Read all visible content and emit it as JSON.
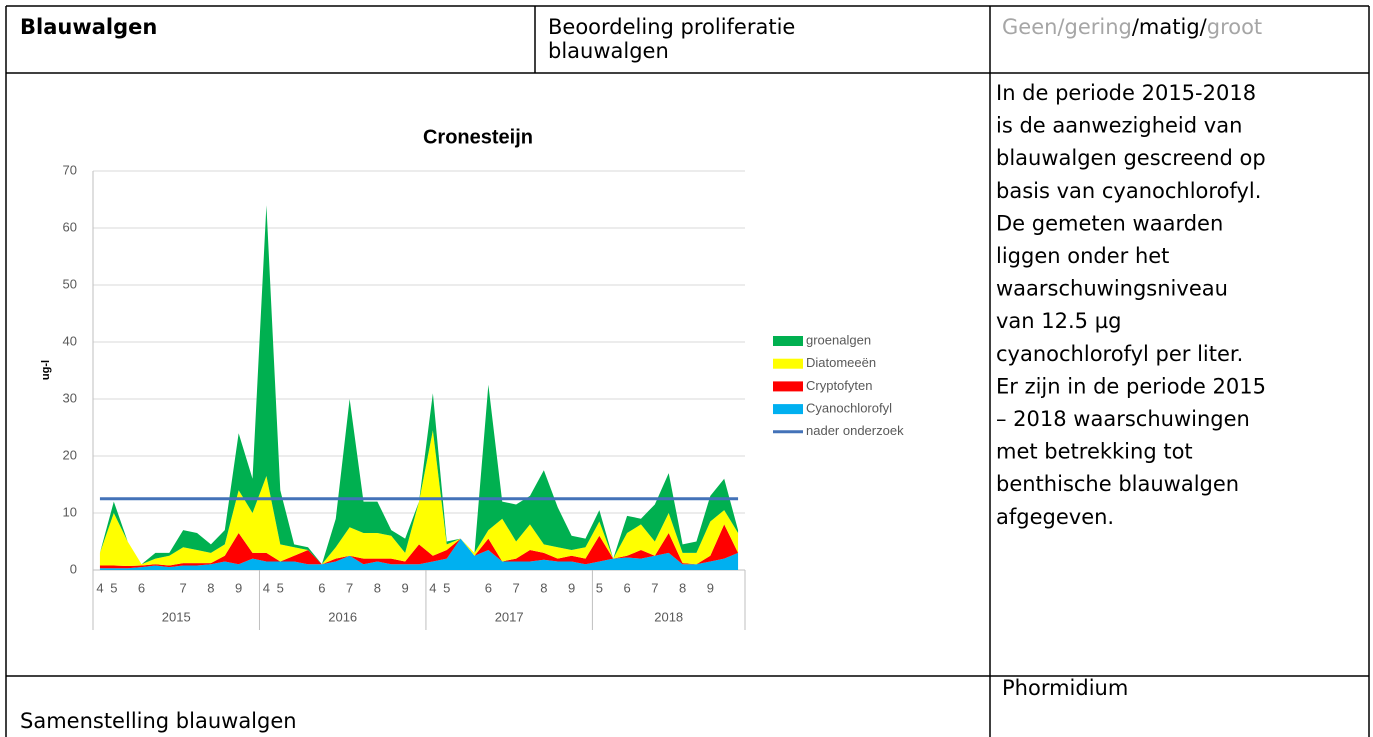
{
  "header": {
    "title": "Blauwalgen",
    "assessment": [
      "Beoordeling proliferatie",
      "blauwalgen"
    ],
    "rating": [
      "Geen/gering",
      "/matig/",
      "groot"
    ]
  },
  "description": [
    "In de periode 2015-2018",
    "is de aanwezigheid van",
    "blauwalgen gescreend op",
    "basis van cyanochlorofyl.",
    "De gemeten waarden",
    "liggen onder het",
    "waarschuwingsniveau",
    "van 12.5 µg",
    "cyanochlorofyl per liter.",
    "Er zijn in de periode 2015",
    "– 2018 waarschuwingen",
    "met betrekking tot",
    "benthische blauwalgen",
    "afgegeven."
  ],
  "footer": {
    "left": "Samenstelling blauwalgen",
    "right": "Phormidium"
  },
  "chart_data": {
    "type": "area",
    "title": "Cronesteijn",
    "y_label": "ug-l",
    "categories": [
      "4",
      "5",
      null,
      "6",
      null,
      null,
      "7",
      null,
      "8",
      null,
      "9",
      null,
      "4",
      "5",
      null,
      null,
      "6",
      null,
      "7",
      null,
      "8",
      null,
      "9",
      null,
      "4",
      "5",
      null,
      null,
      "6",
      null,
      "7",
      null,
      "8",
      null,
      "9",
      null,
      "5",
      null,
      "6",
      null,
      "7",
      null,
      "8",
      null,
      "9",
      null,
      null
    ],
    "groups": [
      {
        "name": "2015",
        "count": 12
      },
      {
        "name": "2016",
        "count": 12
      },
      {
        "name": "2017",
        "count": 12
      },
      {
        "name": "2018",
        "count": 11
      }
    ],
    "series": [
      {
        "name": "groenalgen",
        "color": "#00b050",
        "values": [
          0,
          2,
          0,
          0,
          1,
          0.5,
          3,
          3,
          1.5,
          2.5,
          10,
          6,
          47.5,
          9.5,
          0.5,
          0.5,
          0,
          5,
          22.5,
          5.5,
          5.5,
          1,
          2.5,
          0,
          6.5,
          0.5,
          0,
          0,
          25.5,
          3,
          6.5,
          5,
          13,
          7,
          2.5,
          1.5,
          2,
          0,
          3,
          1,
          6.5,
          7,
          1.5,
          2,
          4.5,
          5.5,
          0.5
        ]
      },
      {
        "name": "Diatomeeën",
        "color": "#ffff00",
        "values": [
          2.2,
          9.2,
          4.3,
          0.2,
          1,
          1.7,
          2.8,
          2.3,
          1.8,
          2,
          7.5,
          7,
          13.5,
          3,
          1.5,
          0,
          0,
          2,
          5,
          4.5,
          4.5,
          4,
          1.5,
          7.5,
          22,
          1,
          0,
          0.5,
          1.5,
          7.5,
          3,
          4.5,
          1.5,
          2,
          1,
          2,
          2.5,
          0,
          4,
          4.5,
          2.5,
          3.5,
          1.8,
          2,
          6,
          2.5,
          3.5
        ]
      },
      {
        "name": "Cryptofyten",
        "color": "#ff0000",
        "values": [
          0.5,
          0.5,
          0.4,
          0.3,
          0.2,
          0.3,
          0.4,
          0.4,
          0.2,
          1,
          5.5,
          1,
          1.5,
          0,
          1,
          2.5,
          0,
          0.5,
          0,
          1,
          0.5,
          1,
          0.5,
          3.5,
          1,
          1.5,
          0,
          0,
          2,
          0,
          0.5,
          2,
          1.2,
          0.5,
          1,
          1,
          4.5,
          0,
          0.3,
          1.5,
          0,
          3.5,
          0.2,
          0,
          1,
          6,
          0
        ]
      },
      {
        "name": "Cyanochlorofyl",
        "color": "#00b0f0",
        "values": [
          0.3,
          0.3,
          0.3,
          0.5,
          0.8,
          0.5,
          0.8,
          0.8,
          1,
          1.5,
          1,
          2,
          1.5,
          1.5,
          1.5,
          1,
          1,
          1.5,
          2.5,
          1,
          1.5,
          1,
          1,
          1,
          1.5,
          2,
          5.5,
          2.5,
          3.5,
          1.5,
          1.5,
          1.5,
          1.8,
          1.5,
          1.5,
          1,
          1.5,
          2,
          2.2,
          2,
          2.5,
          3,
          1,
          1,
          1.5,
          2,
          3
        ]
      },
      {
        "name": "nader onderzoek",
        "color": "#4372b8",
        "type": "line",
        "values": [
          12.5,
          12.5,
          12.5,
          12.5,
          12.5,
          12.5,
          12.5,
          12.5,
          12.5,
          12.5,
          12.5,
          12.5,
          12.5,
          12.5,
          12.5,
          12.5,
          12.5,
          12.5,
          12.5,
          12.5,
          12.5,
          12.5,
          12.5,
          12.5,
          12.5,
          12.5,
          12.5,
          12.5,
          12.5,
          12.5,
          12.5,
          12.5,
          12.5,
          12.5,
          12.5,
          12.5,
          12.5,
          12.5,
          12.5,
          12.5,
          12.5,
          12.5,
          12.5,
          12.5,
          12.5,
          12.5,
          12.5
        ]
      }
    ],
    "ylim": [
      0,
      70
    ],
    "yticks": [
      0,
      10,
      20,
      30,
      40,
      50,
      60,
      70
    ],
    "grid": true
  }
}
